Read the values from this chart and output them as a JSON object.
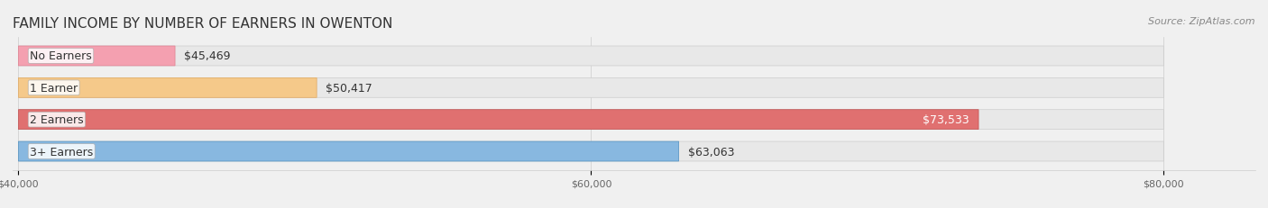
{
  "title": "FAMILY INCOME BY NUMBER OF EARNERS IN OWENTON",
  "source": "Source: ZipAtlas.com",
  "categories": [
    "No Earners",
    "1 Earner",
    "2 Earners",
    "3+ Earners"
  ],
  "values": [
    45469,
    50417,
    73533,
    63063
  ],
  "bar_colors": [
    "#f4a0b0",
    "#f5c98a",
    "#e07070",
    "#88b8e0"
  ],
  "bar_edge_colors": [
    "#e08090",
    "#e0a860",
    "#c05050",
    "#5090c0"
  ],
  "label_colors": [
    "#555555",
    "#555555",
    "#ffffff",
    "#555555"
  ],
  "xmin": 40000,
  "xmax": 80000,
  "xticks": [
    40000,
    60000,
    80000
  ],
  "xtick_labels": [
    "$40,000",
    "$60,000",
    "$80,000"
  ],
  "background_color": "#f0f0f0",
  "bar_bg_color": "#e8e8e8",
  "title_fontsize": 11,
  "label_fontsize": 9,
  "value_fontsize": 9,
  "source_fontsize": 8
}
